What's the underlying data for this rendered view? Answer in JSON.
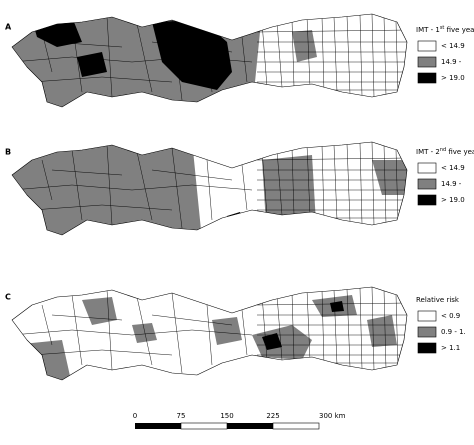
{
  "panels": [
    {
      "label": "A",
      "legend": {
        "title": {
          "prefix": "IMT - 1",
          "sup": "st",
          "suffix": " five yea"
        },
        "items": [
          "< 14.9",
          "14.9 -",
          "> 19.0"
        ]
      }
    },
    {
      "label": "B",
      "legend": {
        "title": {
          "prefix": "IMT - 2",
          "sup": "nd",
          "suffix": " five yea"
        },
        "items": [
          "< 14.9",
          "14.9 -",
          "> 19.0"
        ]
      }
    },
    {
      "label": "C",
      "legend": {
        "title": {
          "prefix": "Relative risk",
          "sup": "",
          "suffix": ""
        },
        "items": [
          "< 0.9",
          "0.9 - 1.",
          "> 1.1"
        ]
      }
    }
  ],
  "scale": [
    "0",
    "75",
    "150",
    "225",
    "300 km"
  ]
}
